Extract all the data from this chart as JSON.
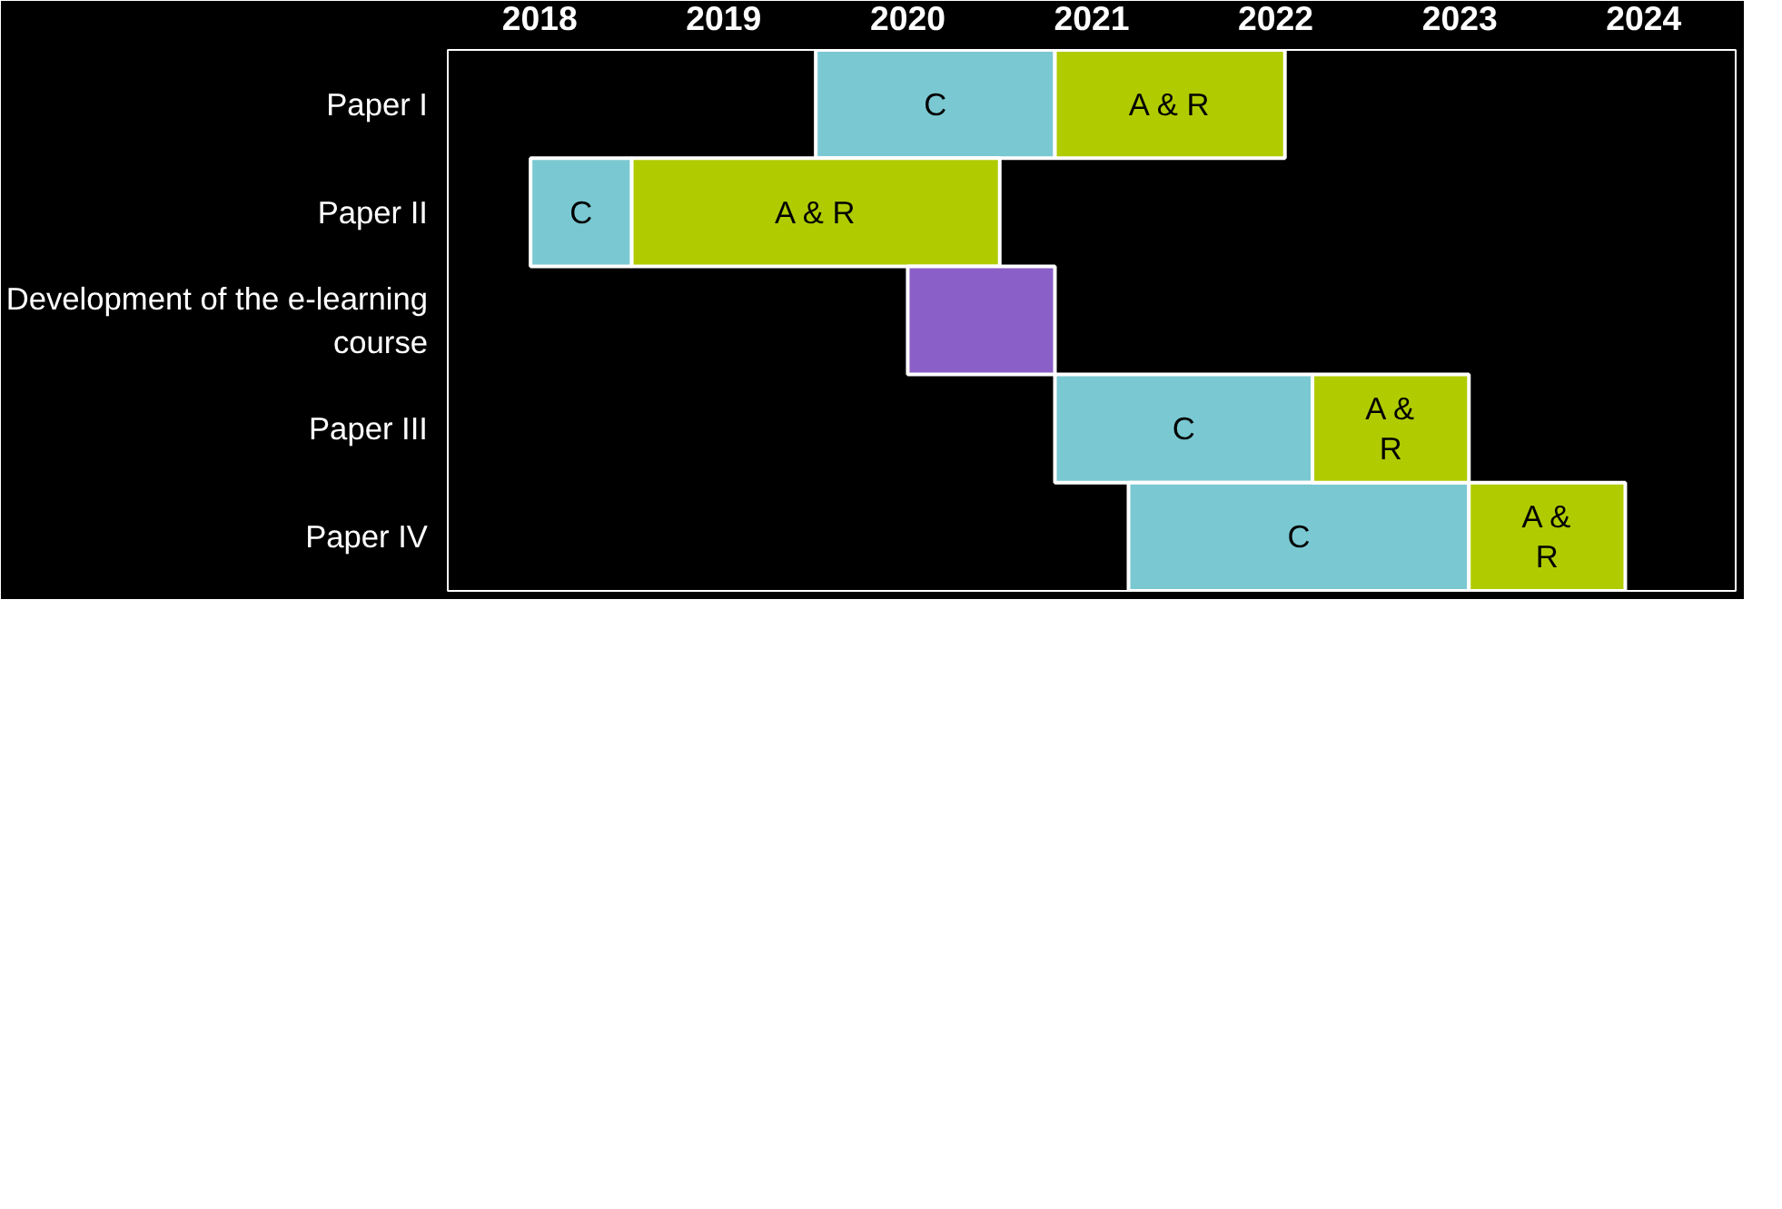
{
  "chart_data": {
    "type": "bar",
    "orientation": "horizontal",
    "categories": [
      "Paper I",
      "Paper II",
      "Development of the e-learning course",
      "Paper III",
      "Paper IV"
    ],
    "xlim": [
      2018.0,
      2025.0
    ],
    "xticks": [
      {
        "value": 2018.5,
        "label": "2018"
      },
      {
        "value": 2019.5,
        "label": "2019"
      },
      {
        "value": 2020.5,
        "label": "2020"
      },
      {
        "value": 2021.5,
        "label": "2021"
      },
      {
        "value": 2022.5,
        "label": "2022"
      },
      {
        "value": 2023.5,
        "label": "2023"
      },
      {
        "value": 2024.5,
        "label": "2024"
      }
    ],
    "series": [
      {
        "name": "C",
        "color": "#7ac8d2",
        "base": [
          2020.0,
          2018.45,
          null,
          2021.3,
          2021.7
        ],
        "values": [
          1.3,
          0.55,
          null,
          1.4,
          1.85
        ]
      },
      {
        "name": "A & R",
        "color": "#b0cb00",
        "base": [
          2021.3,
          2019.0,
          null,
          2022.7,
          2023.55
        ],
        "values": [
          1.25,
          2.0,
          null,
          0.85,
          0.85
        ]
      },
      {
        "color": "#8a5fc8",
        "base": [
          null,
          null,
          2020.5,
          null,
          null
        ],
        "values": [
          null,
          null,
          0.8,
          null,
          null
        ]
      }
    ],
    "grid": false
  }
}
